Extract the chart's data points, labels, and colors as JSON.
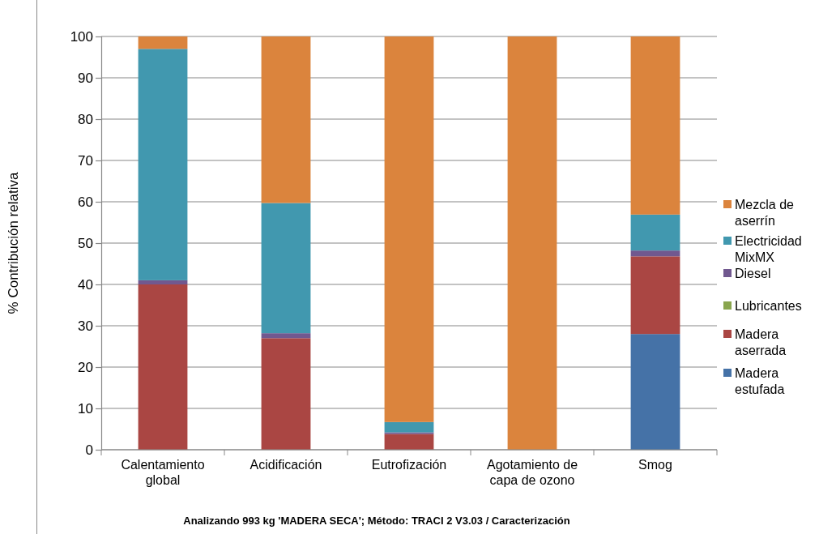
{
  "chart_data": {
    "type": "bar",
    "stacked": true,
    "ylabel": "% Contribución relativa",
    "categories": [
      "Calentamiento global",
      "Acidificación",
      "Eutrofización",
      "Agotamiento de capa de ozono",
      "Smog"
    ],
    "series": [
      {
        "name": "Madera estufada",
        "color": "#4572a7",
        "values": [
          0,
          0,
          0,
          0,
          28
        ]
      },
      {
        "name": "Madera aserrada",
        "color": "#aa4643",
        "values": [
          40,
          27,
          3.8,
          0,
          18.8
        ]
      },
      {
        "name": "Lubricantes",
        "color": "#89a54e",
        "values": [
          0,
          0,
          0,
          0,
          0
        ]
      },
      {
        "name": "Diesel",
        "color": "#71588f",
        "values": [
          1,
          1.2,
          0.4,
          0,
          1.4
        ]
      },
      {
        "name": "Electricidad MixMX",
        "color": "#4198af",
        "values": [
          56,
          31.5,
          2.5,
          0,
          8.7
        ]
      },
      {
        "name": "Mezcla de aserrín",
        "color": "#db843d",
        "values": [
          3,
          40.3,
          93.3,
          100,
          43.1
        ]
      }
    ],
    "ylim": [
      0,
      100
    ],
    "yticks": [
      0,
      10,
      20,
      30,
      40,
      50,
      60,
      70,
      80,
      90,
      100
    ],
    "grid": "y",
    "legend": "right",
    "annotations": [
      "Analizando 993 kg 'MADERA SECA';  Método: TRACI 2 V3.03 / Caracterización"
    ]
  }
}
